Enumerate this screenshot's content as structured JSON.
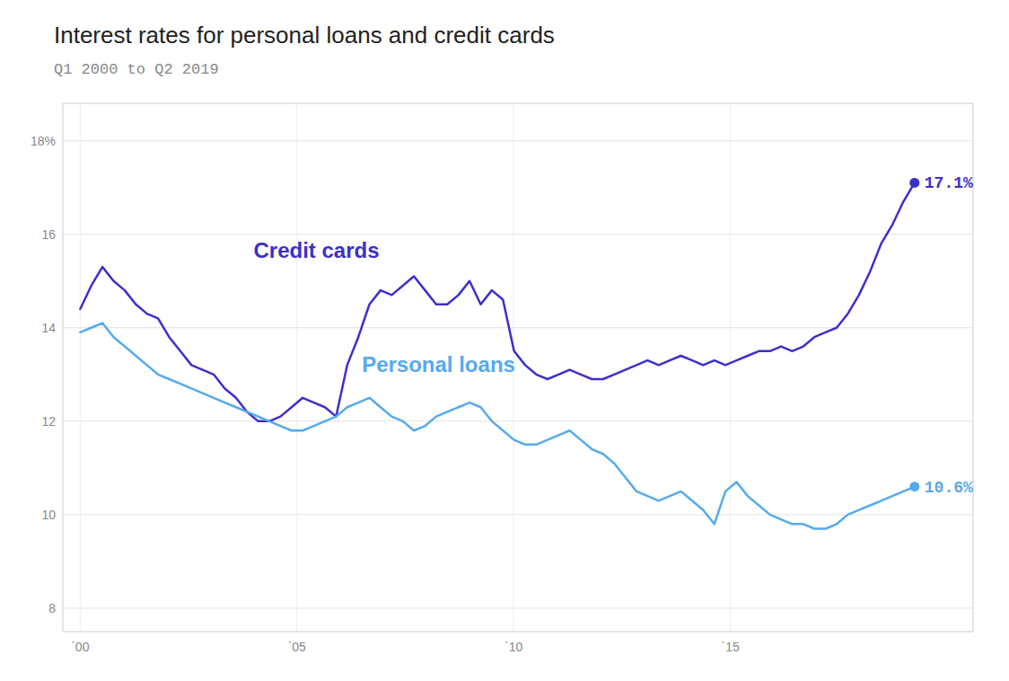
{
  "chart_data": {
    "type": "line",
    "title": "Interest rates for personal loans and credit cards",
    "subtitle": "Q1 2000 to Q2 2019",
    "grid": true,
    "xlim": [
      1999.6,
      2020.6
    ],
    "ylim": [
      7.5,
      18.8
    ],
    "xticks": [
      {
        "value": 2000,
        "label": "`00"
      },
      {
        "value": 2005,
        "label": "`05"
      },
      {
        "value": 2010,
        "label": "`10"
      },
      {
        "value": 2015,
        "label": "`15"
      }
    ],
    "yticks": [
      8,
      10,
      12,
      14,
      16,
      {
        "value": 18,
        "label": "18%"
      }
    ],
    "x": [
      2000,
      2000.2566666667,
      2000.5133333333,
      2000.77,
      2001.0266666667,
      2001.2833333333,
      2001.54,
      2001.7966666667,
      2002.0533333333,
      2002.31,
      2002.5666666667,
      2002.8233333333,
      2003.08,
      2003.3366666667,
      2003.5933333333,
      2003.85,
      2004.1066666667,
      2004.3633333333,
      2004.62,
      2004.8766666667,
      2005.1333333333,
      2005.39,
      2005.6466666667,
      2005.9033333333,
      2006.16,
      2006.4166666667,
      2006.6733333333,
      2006.93,
      2007.1866666667,
      2007.4433333333,
      2007.7,
      2007.9566666667,
      2008.2133333333,
      2008.47,
      2008.7266666667,
      2008.9833333333,
      2009.24,
      2009.4966666667,
      2009.7533333333,
      2010.01,
      2010.2666666667,
      2010.5233333333,
      2010.78,
      2011.0366666667,
      2011.2933333333,
      2011.55,
      2011.8066666667,
      2012.0633333333,
      2012.32,
      2012.5766666667,
      2012.8333333333,
      2013.09,
      2013.3466666667,
      2013.6033333333,
      2013.86,
      2014.1166666667,
      2014.3733333333,
      2014.63,
      2014.8866666667,
      2015.1433333333,
      2015.4,
      2015.6566666667,
      2015.9133333333,
      2016.17,
      2016.4266666667,
      2016.6833333333,
      2016.94,
      2017.1966666667,
      2017.4533333333,
      2017.71,
      2017.9666666667,
      2018.2233333333,
      2018.48,
      2018.7366666667,
      2018.9933333333,
      2019.25
    ],
    "series": [
      {
        "name": "Credit cards",
        "color": "#3d2fcc",
        "name_x": 2004.0,
        "name_y": 15.5,
        "values": [
          14.4,
          14.9,
          15.3,
          15.0,
          14.8,
          14.5,
          14.3,
          14.2,
          13.8,
          13.5,
          13.2,
          13.1,
          13.0,
          12.7,
          12.5,
          12.2,
          12.0,
          12.0,
          12.1,
          12.3,
          12.5,
          12.4,
          12.3,
          12.1,
          13.2,
          13.8,
          14.5,
          14.8,
          14.7,
          14.9,
          15.1,
          14.8,
          14.5,
          14.5,
          14.7,
          15.0,
          14.5,
          14.8,
          14.6,
          13.5,
          13.2,
          13.0,
          12.9,
          13.0,
          13.1,
          13.0,
          12.9,
          12.9,
          13.0,
          13.1,
          13.2,
          13.3,
          13.2,
          13.3,
          13.4,
          13.3,
          13.2,
          13.3,
          13.2,
          13.3,
          13.4,
          13.5,
          13.5,
          13.6,
          13.5,
          13.6,
          13.8,
          13.9,
          14.0,
          14.3,
          14.7,
          15.2,
          15.8,
          16.2,
          16.7,
          17.1
        ]
      },
      {
        "name": "Personal loans",
        "color": "#55aaee",
        "name_x": 2006.5,
        "name_y": 13.05,
        "values": [
          13.9,
          14.0,
          14.1,
          13.8,
          13.6,
          13.4,
          13.2,
          13.0,
          12.9,
          12.8,
          12.7,
          12.6,
          12.5,
          12.4,
          12.3,
          12.2,
          12.1,
          12.0,
          11.9,
          11.8,
          11.8,
          11.9,
          12.0,
          12.1,
          12.3,
          12.4,
          12.5,
          12.3,
          12.1,
          12.0,
          11.8,
          11.9,
          12.1,
          12.2,
          12.3,
          12.4,
          12.3,
          12.0,
          11.8,
          11.6,
          11.5,
          11.5,
          11.6,
          11.7,
          11.8,
          11.6,
          11.4,
          11.3,
          11.1,
          10.8,
          10.5,
          10.4,
          10.3,
          10.4,
          10.5,
          10.3,
          10.1,
          9.8,
          10.5,
          10.7,
          10.4,
          10.2,
          10.0,
          9.9,
          9.8,
          9.8,
          9.7,
          9.7,
          9.8,
          10.0,
          10.1,
          10.2,
          10.3,
          10.4,
          10.5,
          10.6
        ]
      }
    ],
    "annotations": [
      {
        "text": "17.1%",
        "x": 2019.25,
        "y": 17.1,
        "series": 0
      },
      {
        "text": "10.6%",
        "x": 2019.25,
        "y": 10.6,
        "series": 1
      }
    ]
  }
}
